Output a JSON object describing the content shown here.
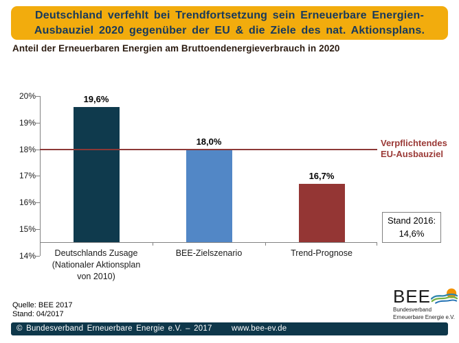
{
  "banner": {
    "line1": "Deutschland verfehlt bei Trendfortsetzung sein Erneuerbare Energien-",
    "line2": "Ausbauziel 2020 gegenüber der EU & die Ziele des nat. Aktionsplans."
  },
  "chart_data": {
    "type": "bar",
    "title": "Anteil der Erneuerbaren Energien am Bruttoendenergieverbrauch in 2020",
    "categories": [
      "Deutschlands Zusage\n(Nationaler Aktionsplan\nvon 2010)",
      "BEE-Zielszenario",
      "Trend-Prognose"
    ],
    "values": [
      19.6,
      18.0,
      16.7
    ],
    "value_labels": [
      "19,6%",
      "18,0%",
      "16,7%"
    ],
    "bar_colors": [
      "#0F3A4D",
      "#5287C6",
      "#943634"
    ],
    "ylim": [
      14,
      20
    ],
    "ytick_step": 1,
    "ytick_labels": [
      "14%",
      "15%",
      "16%",
      "17%",
      "18%",
      "19%",
      "20%"
    ],
    "grid": false,
    "legend": "none",
    "reference_line": {
      "value": 18,
      "label": "Verpflichtendes\nEU-Ausbauziel"
    },
    "annotation_box": {
      "line1": "Stand 2016:",
      "line2": "14,6%"
    }
  },
  "footer": {
    "source": "Quelle:  BEE 2017",
    "stand": "Stand:  04/2017",
    "copyright": "© Bundesverband Erneuerbare Energie e.V. – 2017",
    "website": "www.bee-ev.de"
  },
  "logo": {
    "text": "BEE",
    "subline1": "Bundesverband",
    "subline2": "Erneuerbare Energie e.V."
  },
  "colors": {
    "banner_bg": "#F2AC0D",
    "banner_text": "#17395C",
    "subtitle_text": "#2B1B10",
    "bar_navy": "#0F3A4D",
    "bar_blue": "#5287C6",
    "bar_red": "#943634",
    "ref_line": "#8C3836",
    "ref_text": "#9A3936",
    "axis": "#808080",
    "footer_bar_bg": "#0E374A",
    "footer_bar_text": "#FFFFFF",
    "logo_sun": "#F29200",
    "logo_wave_teal": "#2E86AB",
    "logo_wave_green": "#76B043",
    "logo_wave_blue": "#1F6FB2"
  }
}
